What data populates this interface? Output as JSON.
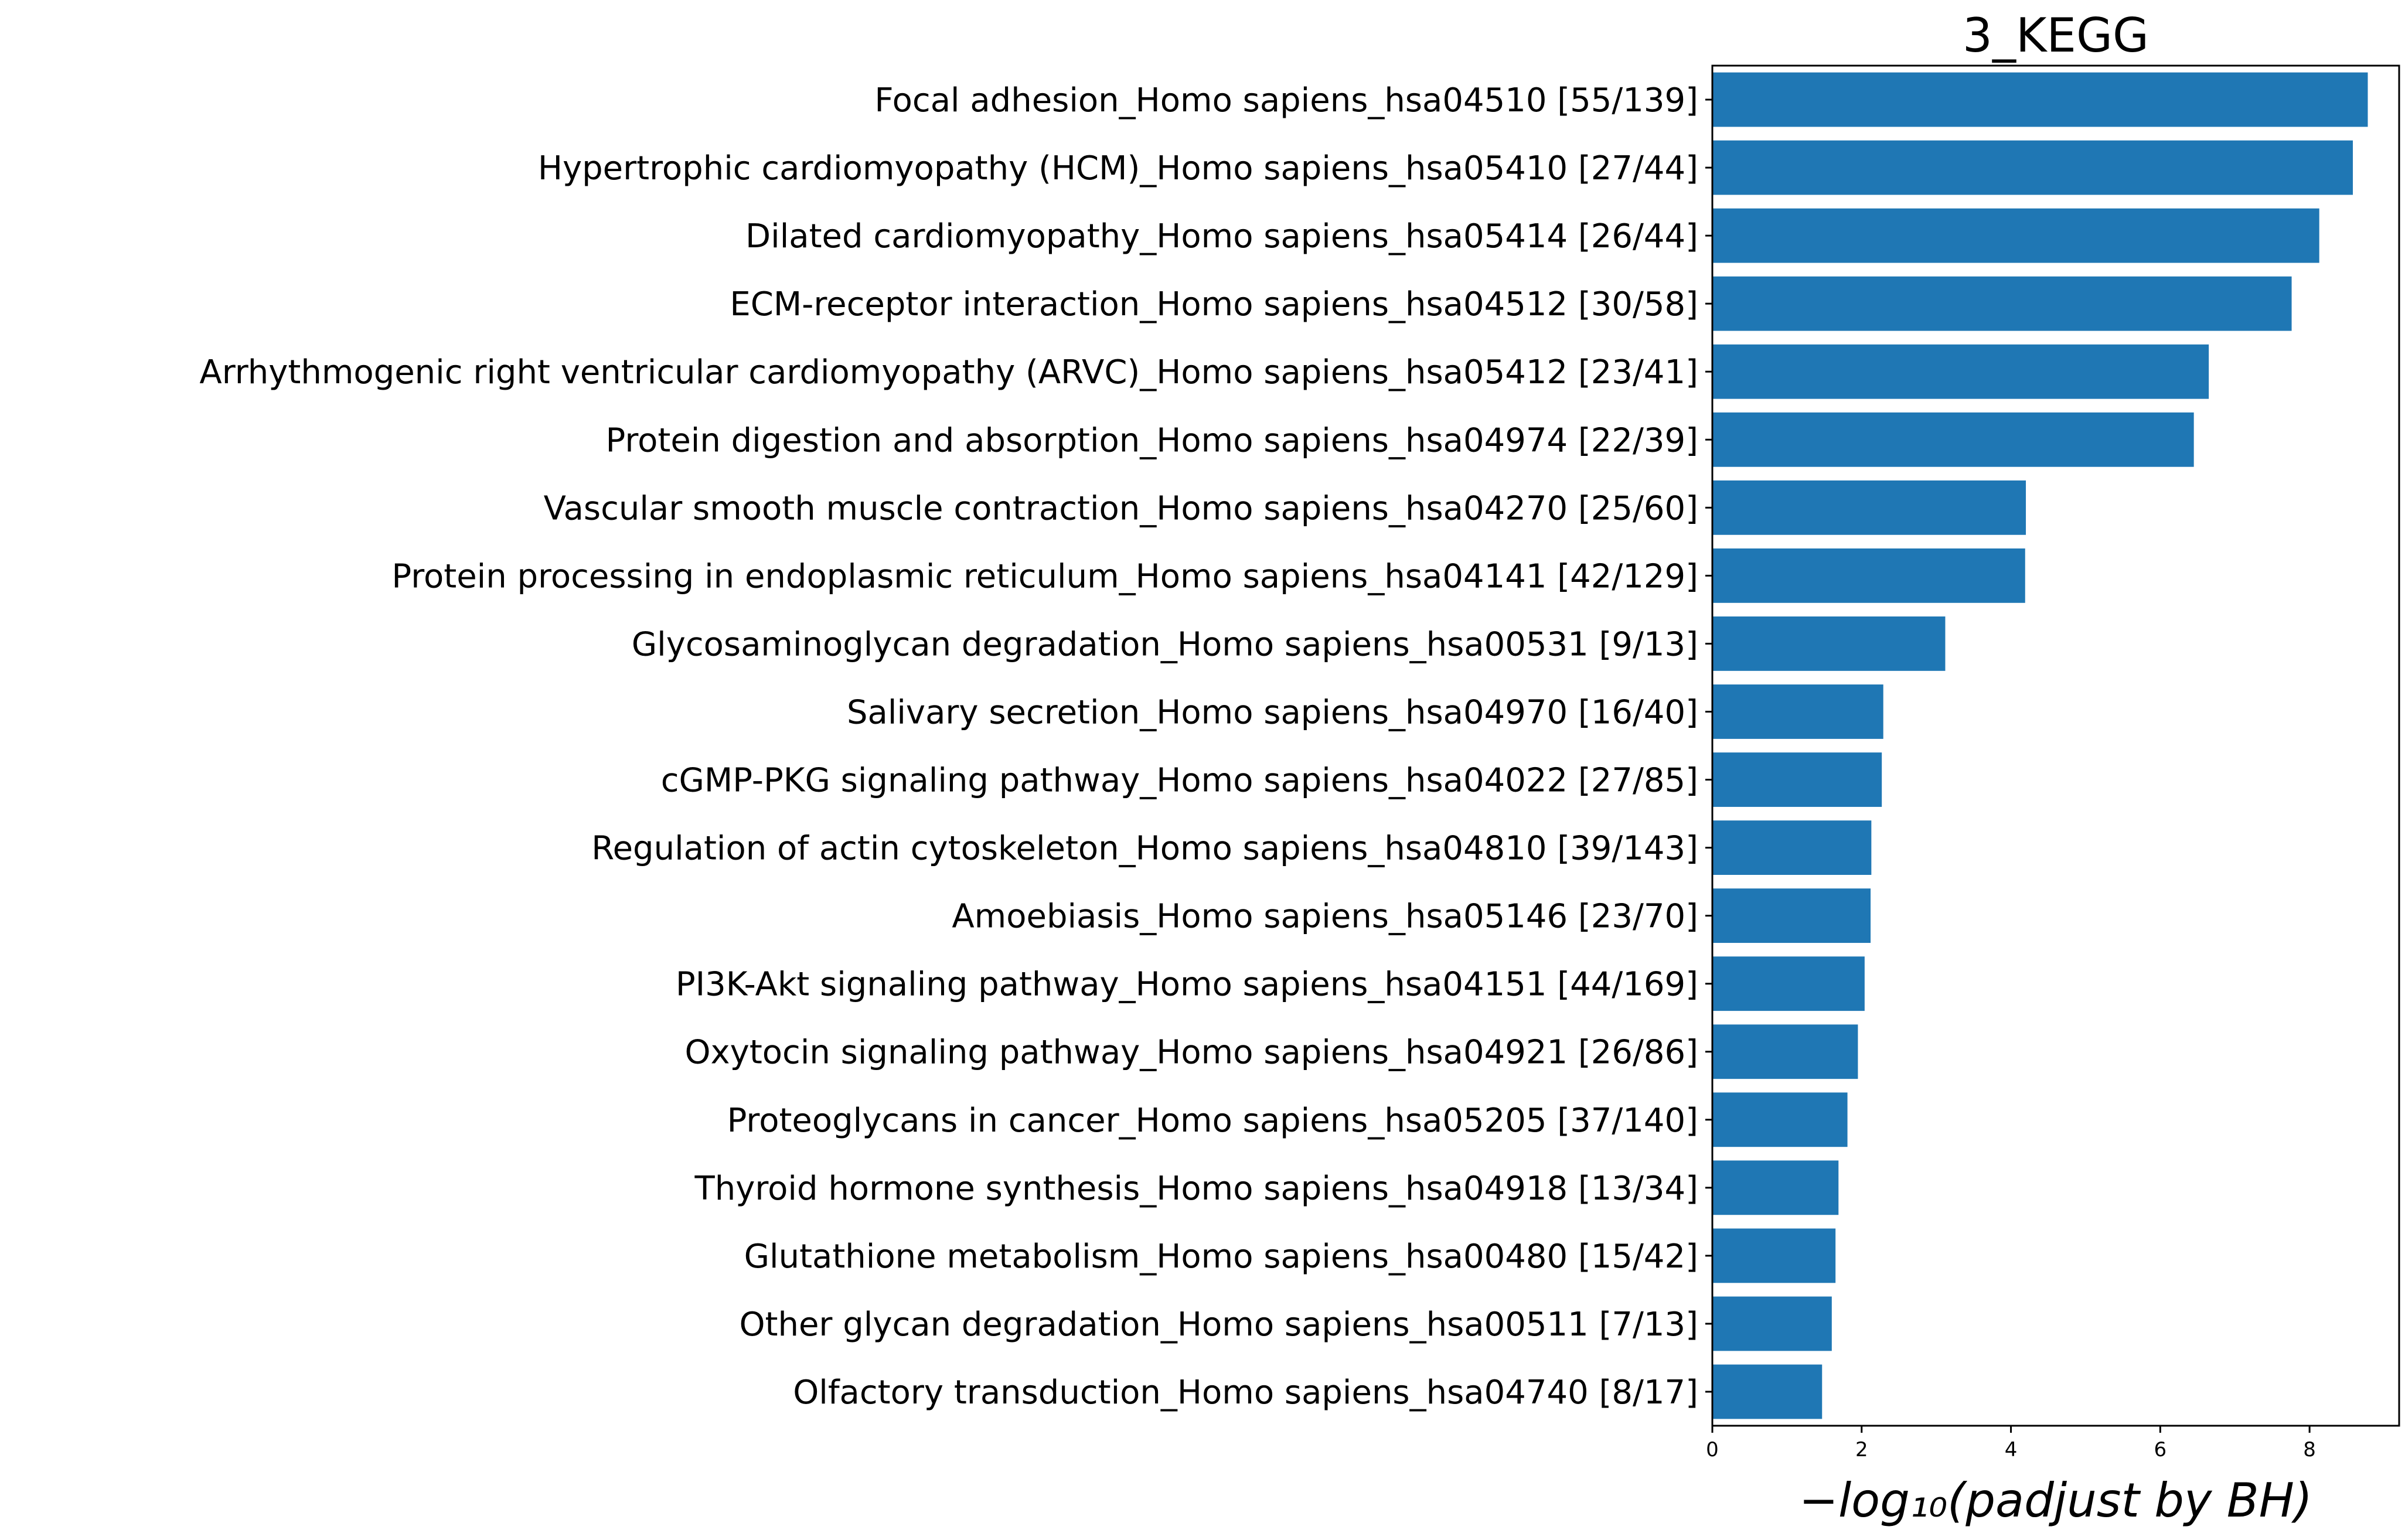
{
  "chart_data": {
    "type": "bar",
    "orientation": "horizontal",
    "title": "3_KEGG",
    "xlabel": "−log₁₀(padjust by BH)",
    "ylabel": "",
    "xlim": [
      0,
      9.2
    ],
    "xticks": [
      0,
      2,
      4,
      6,
      8
    ],
    "grid": false,
    "bar_color": "#1f77b4",
    "categories": [
      "Focal adhesion_Homo sapiens_hsa04510 [55/139]",
      "Hypertrophic cardiomyopathy (HCM)_Homo sapiens_hsa05410 [27/44]",
      "Dilated cardiomyopathy_Homo sapiens_hsa05414 [26/44]",
      "ECM-receptor interaction_Homo sapiens_hsa04512 [30/58]",
      "Arrhythmogenic right ventricular cardiomyopathy (ARVC)_Homo sapiens_hsa05412 [23/41]",
      "Protein digestion and absorption_Homo sapiens_hsa04974 [22/39]",
      "Vascular smooth muscle contraction_Homo sapiens_hsa04270 [25/60]",
      "Protein processing in endoplasmic reticulum_Homo sapiens_hsa04141 [42/129]",
      "Glycosaminoglycan degradation_Homo sapiens_hsa00531 [9/13]",
      "Salivary secretion_Homo sapiens_hsa04970 [16/40]",
      "cGMP-PKG signaling pathway_Homo sapiens_hsa04022 [27/85]",
      "Regulation of actin cytoskeleton_Homo sapiens_hsa04810 [39/143]",
      "Amoebiasis_Homo sapiens_hsa05146 [23/70]",
      "PI3K-Akt signaling pathway_Homo sapiens_hsa04151 [44/169]",
      "Oxytocin signaling pathway_Homo sapiens_hsa04921 [26/86]",
      "Proteoglycans in cancer_Homo sapiens_hsa05205 [37/140]",
      "Thyroid hormone synthesis_Homo sapiens_hsa04918 [13/34]",
      "Glutathione metabolism_Homo sapiens_hsa00480 [15/42]",
      "Other glycan degradation_Homo sapiens_hsa00511 [7/13]",
      "Olfactory transduction_Homo sapiens_hsa04740 [8/17]"
    ],
    "values": [
      8.78,
      8.58,
      8.13,
      7.76,
      6.65,
      6.45,
      4.2,
      4.19,
      3.12,
      2.29,
      2.27,
      2.13,
      2.12,
      2.04,
      1.95,
      1.81,
      1.69,
      1.65,
      1.6,
      1.47
    ]
  }
}
